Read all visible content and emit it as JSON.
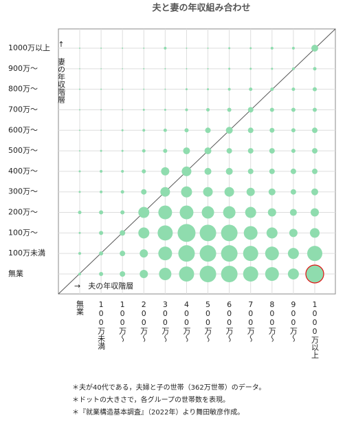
{
  "chart_data": {
    "type": "bubble-grid",
    "title": "夫と妻の年収組み合わせ",
    "x_label": "→　夫の年収階層",
    "y_label": "↑\n妻の年収階層",
    "categories": [
      "無業",
      "100万未満",
      "100万～",
      "200万～",
      "300万～",
      "400万～",
      "500万～",
      "600万～",
      "700万～",
      "800万～",
      "900万～",
      "1000万以上"
    ],
    "y_categories": [
      "無業",
      "100万未満",
      "100万～",
      "200万～",
      "300万～",
      "400万～",
      "500万～",
      "600万～",
      "700万～",
      "800万～",
      "900万～",
      "1000万以上"
    ],
    "sizes": [
      [
        2,
        3,
        4,
        6,
        9,
        11,
        12,
        12,
        11,
        10,
        8,
        13
      ],
      [
        2,
        3,
        4,
        6,
        10,
        12,
        12,
        12,
        11,
        10,
        8,
        11
      ],
      [
        1.5,
        3,
        4,
        8,
        11,
        13,
        12,
        12,
        10,
        8,
        6,
        7
      ],
      [
        2.5,
        3,
        3,
        8,
        10,
        10,
        9,
        9,
        8,
        6,
        5,
        6
      ],
      [
        1.5,
        2,
        2.5,
        4,
        7,
        8,
        7,
        7,
        6,
        5,
        4,
        5
      ],
      [
        1.5,
        2,
        2,
        3,
        6,
        7,
        5,
        5,
        4,
        4,
        4,
        4
      ],
      [
        1,
        1.5,
        1.5,
        2.5,
        3,
        5,
        5,
        4,
        4,
        4,
        3,
        4
      ],
      [
        1,
        1,
        1.5,
        2,
        2.5,
        3,
        4,
        5,
        4,
        3.5,
        3,
        4
      ],
      [
        1,
        1,
        1,
        1.5,
        1.5,
        2,
        2.5,
        3,
        4,
        3,
        3,
        3
      ],
      [
        1,
        1,
        1,
        1,
        1,
        1.5,
        1.5,
        2,
        2.5,
        2.5,
        2.5,
        3
      ],
      [
        0.8,
        0.8,
        0.8,
        1,
        1,
        1,
        1,
        1.5,
        1.5,
        1.5,
        2,
        2.5
      ],
      [
        1,
        1,
        1,
        1,
        2,
        1,
        1,
        1.5,
        1.5,
        2,
        2,
        5
      ]
    ],
    "color": "#8fdcae",
    "highlight": [
      0,
      11
    ],
    "highlight_color": "#e01010",
    "grid": true,
    "notes": [
      "＊夫が40代である，夫婦と子の世帯（362万世帯）のデータ。",
      "＊ドットの大きさで，各グループの世帯数を表現。",
      "＊『就業構造基本調査』（2022年）より舞田敏彦作成。"
    ]
  }
}
